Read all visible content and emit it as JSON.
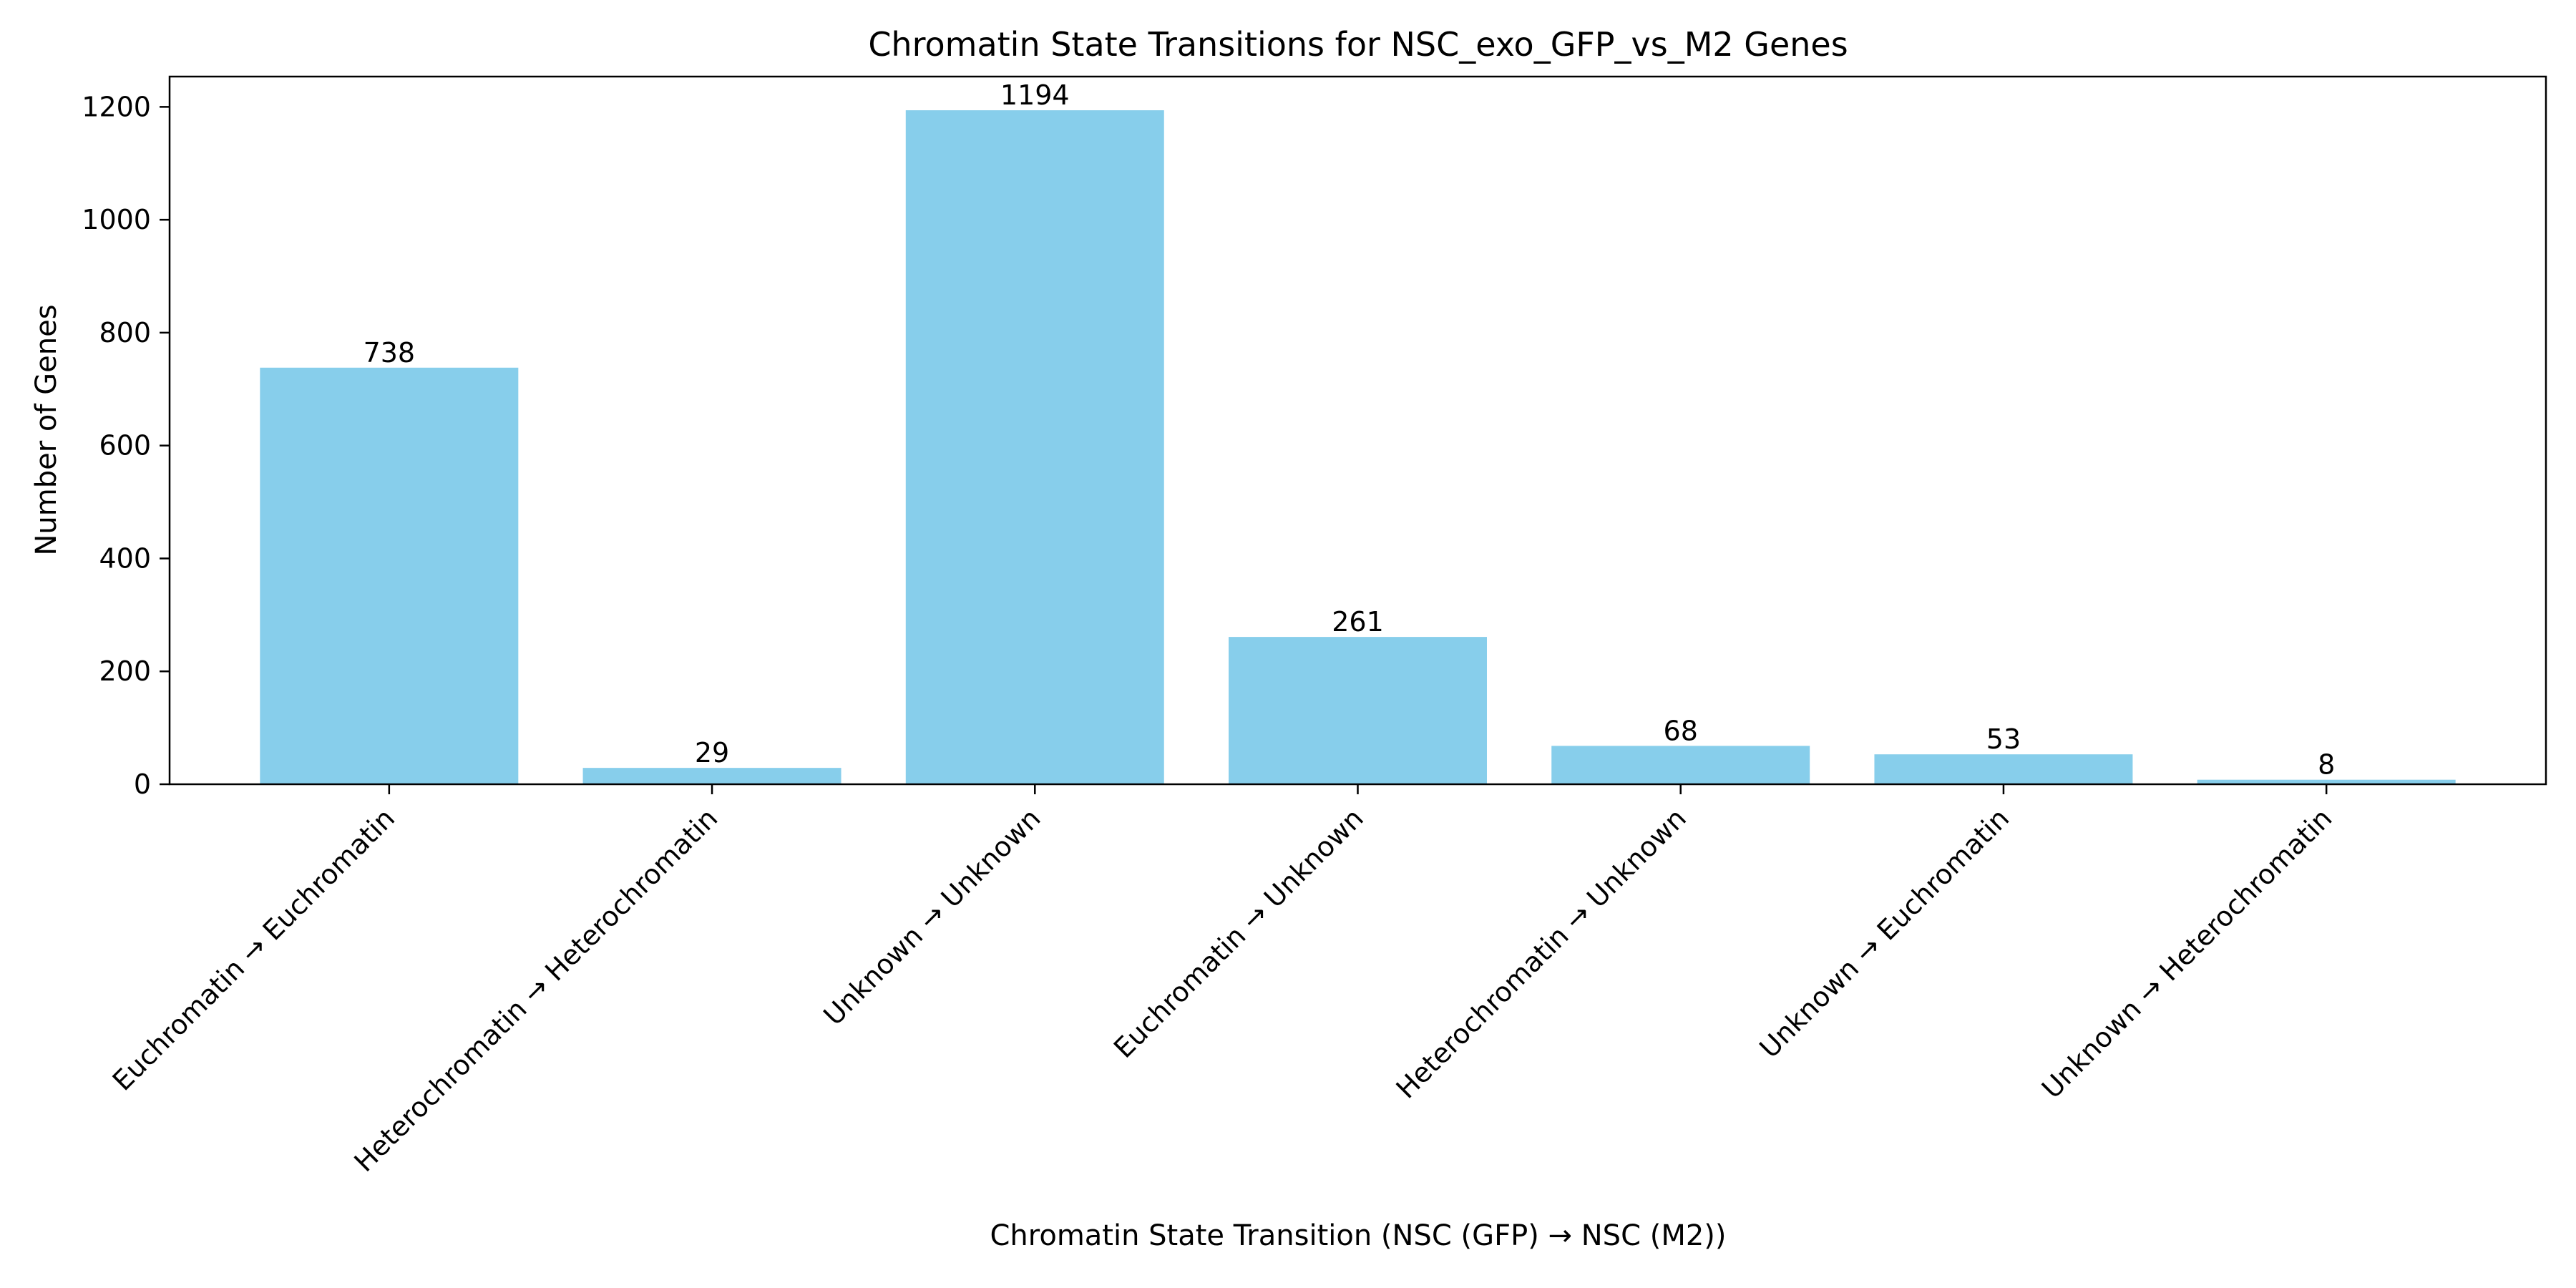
{
  "chart_data": {
    "type": "bar",
    "title": "Chromatin State Transitions for NSC_exo_GFP_vs_M2 Genes",
    "xlabel": "Chromatin State Transition (NSC (GFP) → NSC (M2))",
    "ylabel": "Number of Genes",
    "categories": [
      "Euchromatin → Euchromatin",
      "Heterochromatin → Heterochromatin",
      "Unknown → Unknown",
      "Euchromatin → Unknown",
      "Heterochromatin → Unknown",
      "Unknown → Euchromatin",
      "Unknown → Heterochromatin"
    ],
    "values": [
      738,
      29,
      1194,
      261,
      68,
      53,
      8
    ],
    "value_labels": [
      "738",
      "29",
      "1194",
      "261",
      "68",
      "53",
      "8"
    ],
    "ylim": [
      0,
      1253.7
    ],
    "yticks": [
      0,
      200,
      400,
      600,
      800,
      1000,
      1200
    ],
    "ytick_labels": [
      "0",
      "200",
      "400",
      "600",
      "800",
      "1000",
      "1200"
    ],
    "bar_color": "#87ceeb",
    "grid": false,
    "legend": "none"
  }
}
